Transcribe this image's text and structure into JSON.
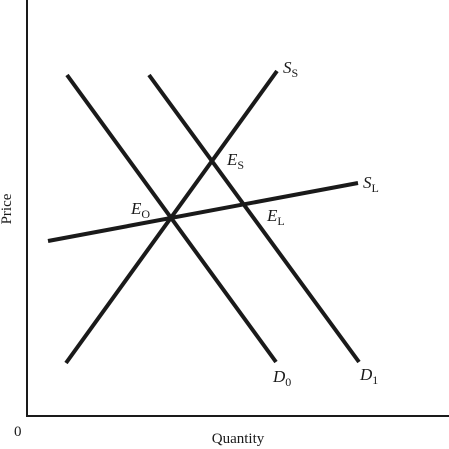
{
  "axes": {
    "x_label": "Quantity",
    "y_label": "Price",
    "origin_label": "0"
  },
  "curves": {
    "d0": {
      "letter": "D",
      "sub": "0"
    },
    "d1": {
      "letter": "D",
      "sub": "1"
    },
    "ss": {
      "letter": "S",
      "sub": "S"
    },
    "sl": {
      "letter": "S",
      "sub": "L"
    }
  },
  "points": {
    "eo": {
      "letter": "E",
      "sub": "O"
    },
    "es": {
      "letter": "E",
      "sub": "S"
    },
    "el": {
      "letter": "E",
      "sub": "L"
    }
  }
}
